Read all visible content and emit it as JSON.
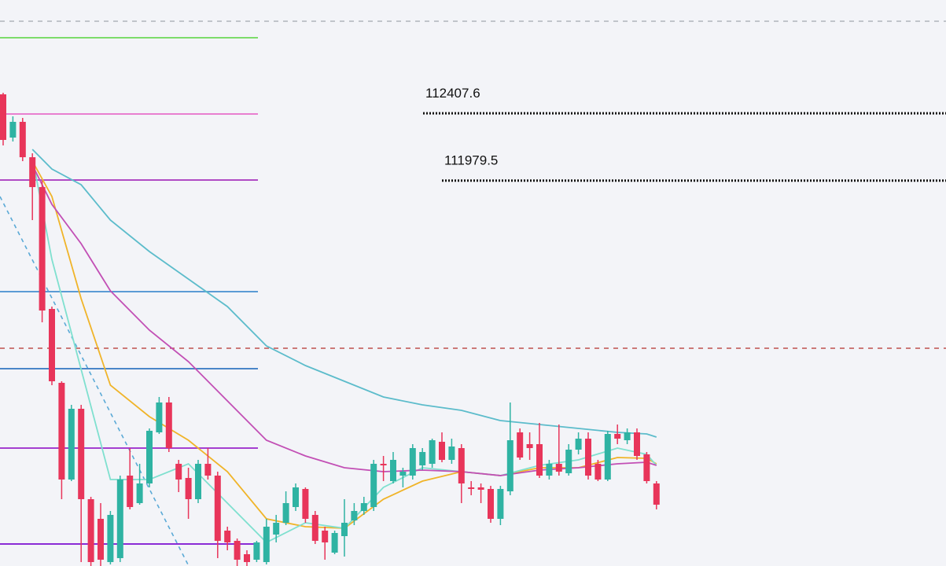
{
  "chart_data": {
    "type": "candlestick",
    "ylim": [
      109528,
      113128
    ],
    "up_color": "#2fb3a3",
    "down_color": "#e8355a",
    "open": [
      112528,
      112253,
      112353,
      112128,
      111938,
      111163,
      110693,
      110078,
      110528,
      109953,
      109828,
      109553,
      109578,
      110103,
      109928,
      110053,
      110378,
      110568,
      110178,
      110088,
      109953,
      110178,
      110103,
      109753,
      109688,
      109603,
      109568,
      109553,
      109728,
      109803,
      109903,
      110018,
      109853,
      109753,
      109613,
      109718,
      109818,
      109878,
      109903,
      110178,
      110068,
      110103,
      110103,
      110168,
      110178,
      110318,
      110203,
      110278,
      110028,
      110028,
      110018,
      109828,
      110003,
      110378,
      110303,
      110303,
      110103,
      110178,
      110118,
      110268,
      110338,
      110178,
      110078,
      110368,
      110328,
      110378,
      110238,
      110053
    ],
    "high": [
      112538,
      112388,
      112378,
      112153,
      111978,
      111178,
      110703,
      110553,
      110553,
      109968,
      109928,
      109878,
      110103,
      110278,
      110178,
      110403,
      110603,
      110603,
      110203,
      110153,
      110203,
      110278,
      110128,
      109778,
      109703,
      109628,
      109688,
      109828,
      109853,
      110003,
      110053,
      110028,
      109878,
      109778,
      109753,
      109953,
      109928,
      109968,
      110203,
      110228,
      110253,
      110153,
      110303,
      110278,
      110338,
      110378,
      110338,
      110303,
      110068,
      110053,
      110038,
      110038,
      110568,
      110403,
      110378,
      110438,
      110203,
      110428,
      110303,
      110378,
      110378,
      110203,
      110388,
      110428,
      110403,
      110403,
      110253,
      110068
    ],
    "low": [
      112203,
      112228,
      112103,
      111728,
      111078,
      110678,
      109953,
      110068,
      109553,
      109528,
      109528,
      109538,
      109553,
      109888,
      109918,
      110028,
      110368,
      110253,
      109998,
      109828,
      109928,
      110078,
      109578,
      109628,
      109528,
      109528,
      109553,
      109538,
      109678,
      109788,
      109878,
      109803,
      109668,
      109568,
      109603,
      109588,
      109788,
      109853,
      109878,
      110068,
      110053,
      110028,
      110078,
      110138,
      110153,
      110188,
      110178,
      109928,
      109978,
      109928,
      109803,
      109788,
      109978,
      110203,
      110203,
      110088,
      110078,
      110103,
      110103,
      110238,
      110078,
      110068,
      110068,
      110303,
      110303,
      110203,
      110053,
      109888
    ],
    "close": [
      112238,
      112353,
      112128,
      111938,
      111153,
      110703,
      110078,
      110528,
      109953,
      109553,
      109568,
      109853,
      110078,
      109903,
      110053,
      110388,
      110568,
      110278,
      110078,
      109953,
      110178,
      110103,
      109688,
      109678,
      109568,
      109553,
      109678,
      109778,
      109803,
      109928,
      110028,
      109828,
      109688,
      109678,
      109738,
      109803,
      109878,
      109928,
      110178,
      110168,
      110203,
      110128,
      110278,
      110253,
      110328,
      110203,
      110288,
      110053,
      110018,
      110013,
      109828,
      110018,
      110328,
      110218,
      110278,
      110103,
      110178,
      110128,
      110268,
      110338,
      110103,
      110078,
      110368,
      110338,
      110378,
      110228,
      110068,
      109918
    ],
    "series": [
      {
        "color": "#f0b429",
        "x": [
          3,
          5,
          8,
          11,
          15,
          19,
          23,
          27,
          31,
          35,
          39,
          43,
          47,
          51,
          55,
          59,
          63,
          66,
          67
        ],
        "values": [
          112103,
          111878,
          111228,
          110678,
          110478,
          110328,
          110128,
          109828,
          109778,
          109768,
          109953,
          110068,
          110128,
          110103,
          110153,
          110153,
          110218,
          110213,
          110178
        ]
      },
      {
        "color": "#7fe0cf",
        "x": [
          3,
          5,
          8,
          11,
          15,
          19,
          23,
          27,
          31,
          35,
          39,
          43,
          47,
          51,
          55,
          59,
          63,
          66,
          67
        ],
        "values": [
          112128,
          111478,
          110778,
          110078,
          110078,
          110178,
          109928,
          109678,
          109803,
          109768,
          110028,
          110153,
          110128,
          110103,
          110168,
          110203,
          110278,
          110238,
          110168
        ]
      },
      {
        "color": "#c24fb5",
        "x": [
          3,
          5,
          8,
          11,
          15,
          19,
          23,
          27,
          31,
          35,
          39,
          43,
          47,
          51,
          55,
          59,
          63,
          66,
          67
        ],
        "values": [
          112078,
          111828,
          111578,
          111278,
          111028,
          110828,
          110578,
          110328,
          110228,
          110153,
          110128,
          110138,
          110128,
          110103,
          110138,
          110153,
          110178,
          110188,
          110168
        ]
      },
      {
        "color": "#5cbccb",
        "x": [
          3,
          5,
          8,
          11,
          15,
          19,
          23,
          27,
          31,
          35,
          39,
          43,
          47,
          51,
          55,
          59,
          63,
          66,
          67
        ],
        "values": [
          112178,
          112053,
          111953,
          111728,
          111528,
          111353,
          111178,
          110928,
          110803,
          110703,
          110603,
          110553,
          110518,
          110453,
          110428,
          110403,
          110378,
          110368,
          110348
        ]
      }
    ],
    "levels": [
      {
        "value": 112993,
        "color": "#b0b3ba",
        "style": "dashed"
      },
      {
        "value": 112888,
        "color": "#7ddc6a",
        "style": "solid"
      },
      {
        "value": 112403,
        "color": "#e87fd0",
        "style": "solid"
      },
      {
        "value": 111983,
        "color": "#b04bc4",
        "style": "solid"
      },
      {
        "value": 111273,
        "color": "#5b9bd5",
        "style": "solid"
      },
      {
        "value": 110783,
        "color": "#4a86c8",
        "style": "solid"
      },
      {
        "value": 110278,
        "color": "#a43fd0",
        "style": "solid"
      },
      {
        "value": 109668,
        "color": "#8a2bd6",
        "style": "solid"
      },
      {
        "value": 110913,
        "color": "#c0504d",
        "style": "dashed"
      },
      {
        "value": 112407.6,
        "color": "#111111",
        "style": "dotted"
      },
      {
        "value": 111979.5,
        "color": "#111111",
        "style": "dotted"
      }
    ]
  }
}
